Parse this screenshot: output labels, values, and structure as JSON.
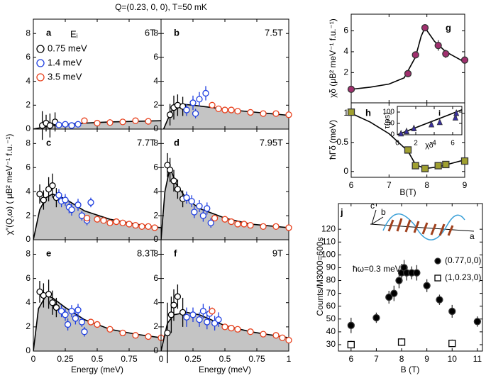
{
  "title": "Q=(0.23, 0, 0), T=50 mK",
  "y_label": "χ″(Q,ω) ( μB² meV⁻¹ f.u.⁻¹)",
  "spiral_diagram": {
    "a": "a",
    "b": "b",
    "c": "c"
  },
  "chart_data": [
    {
      "type": "scatter",
      "label": "a",
      "field": "6T",
      "legend_title": "Eᵢ",
      "fill": "#c4c4c4",
      "xlim": [
        0,
        1
      ],
      "xticks": [
        0,
        0.25,
        0.5,
        0.75
      ],
      "xtick_labels_shown": false,
      "ylim": [
        0,
        9.2
      ],
      "yticks": [
        0,
        2,
        4,
        6,
        8
      ],
      "series": [
        {
          "name": "0.75 meV",
          "color": "#000000",
          "marker": "circle-open",
          "x": [
            0.07,
            0.1,
            0.13,
            0.17
          ],
          "values": [
            0.3,
            0.5,
            0.3,
            0.6
          ],
          "errors": [
            1.2,
            0.7,
            1.0,
            0.8
          ]
        },
        {
          "name": "1.4 meV",
          "color": "#1f3fe0",
          "marker": "circle-open",
          "x": [
            0.2,
            0.25,
            0.3,
            0.35
          ],
          "values": [
            0.35,
            0.4,
            0.3,
            0.4
          ],
          "errors": [
            0.2,
            0.25,
            0.2,
            0.2
          ]
        },
        {
          "name": "3.5 meV",
          "color": "#e8401c",
          "marker": "circle-open",
          "x": [
            0.4,
            0.5,
            0.6,
            0.7,
            0.8,
            0.9
          ],
          "values": [
            0.7,
            0.5,
            0.55,
            0.6,
            0.7,
            0.65
          ],
          "errors": [
            0.1,
            0.1,
            0.1,
            0.1,
            0.1,
            0.1
          ]
        }
      ],
      "fit": {
        "x": [
          0,
          0.1,
          0.2,
          0.4,
          0.6,
          0.8,
          1
        ],
        "values": [
          0,
          0.2,
          0.35,
          0.5,
          0.6,
          0.65,
          0.7
        ]
      }
    },
    {
      "type": "scatter",
      "label": "b",
      "field": "7.5T",
      "fill": "#c4c4c4",
      "xlim": [
        0,
        1
      ],
      "xticks": [
        0,
        0.25,
        0.5,
        0.75,
        1
      ],
      "xtick_labels_shown": false,
      "ylim": [
        0,
        9.2
      ],
      "yticks": [
        0,
        2,
        4,
        6,
        8
      ],
      "series": [
        {
          "color": "#000000",
          "marker": "circle-open",
          "x": [
            0.07,
            0.1,
            0.13,
            0.17
          ],
          "values": [
            1.2,
            1.8,
            2.0,
            1.9
          ],
          "errors": [
            0.9,
            1.0,
            0.9,
            0.8
          ]
        },
        {
          "color": "#1f3fe0",
          "marker": "circle-open",
          "x": [
            0.2,
            0.25,
            0.27,
            0.3,
            0.35
          ],
          "values": [
            1.6,
            2.2,
            1.3,
            2.5,
            3.0
          ],
          "errors": [
            0.5,
            0.6,
            0.4,
            0.6,
            0.6
          ]
        },
        {
          "color": "#e8401c",
          "marker": "circle-open",
          "x": [
            0.4,
            0.45,
            0.5,
            0.55,
            0.6,
            0.7,
            0.8,
            0.9,
            1.0
          ],
          "values": [
            2.0,
            1.7,
            1.6,
            1.6,
            1.5,
            1.4,
            1.3,
            1.3,
            1.2
          ],
          "errors": [
            0.15,
            0.1,
            0.1,
            0.1,
            0.1,
            0.1,
            0.1,
            0.1,
            0.1
          ]
        }
      ],
      "fit": {
        "x": [
          0.02,
          0.08,
          0.15,
          0.25,
          0.4,
          0.6,
          0.8,
          1
        ],
        "values": [
          0,
          1.5,
          2.1,
          2.0,
          1.8,
          1.55,
          1.35,
          1.15
        ]
      }
    },
    {
      "type": "scatter",
      "label": "c",
      "field": "7.7T",
      "fill": "#c4c4c4",
      "xlim": [
        0,
        1
      ],
      "xticks": [
        0,
        0.25,
        0.5,
        0.75
      ],
      "xtick_labels_shown": false,
      "ylim": [
        0,
        9.2
      ],
      "yticks": [
        0,
        2,
        4,
        6,
        8
      ],
      "series": [
        {
          "color": "#000000",
          "marker": "circle-open",
          "x": [
            0.05,
            0.08,
            0.12,
            0.15,
            0.18
          ],
          "values": [
            3.8,
            3.3,
            4.2,
            4.5,
            3.5
          ],
          "errors": [
            0.8,
            0.8,
            1.0,
            1.0,
            0.8
          ]
        },
        {
          "color": "#1f3fe0",
          "marker": "circle-open",
          "x": [
            0.2,
            0.22,
            0.25,
            0.28,
            0.3,
            0.35,
            0.38,
            0.42,
            0.45
          ],
          "values": [
            3.7,
            3.2,
            3.3,
            2.7,
            2.5,
            2.9,
            2.0,
            1.6,
            3.1
          ],
          "errors": [
            0.5,
            0.5,
            0.5,
            0.5,
            0.5,
            0.5,
            0.4,
            0.4,
            0.4
          ]
        },
        {
          "color": "#e8401c",
          "marker": "circle-open",
          "x": [
            0.42,
            0.5,
            0.55,
            0.6,
            0.65,
            0.7,
            0.75,
            0.8,
            0.85,
            0.9,
            0.95
          ],
          "values": [
            1.8,
            1.7,
            1.6,
            1.4,
            1.5,
            1.4,
            1.3,
            1.2,
            1.1,
            1.1,
            1.0
          ],
          "errors": [
            0.1,
            0.1,
            0.1,
            0.1,
            0.1,
            0.1,
            0.1,
            0.1,
            0.1,
            0.1,
            0.1
          ]
        }
      ],
      "fit": {
        "x": [
          0,
          0.05,
          0.1,
          0.15,
          0.25,
          0.4,
          0.6,
          0.8,
          1
        ],
        "values": [
          0,
          2.5,
          3.5,
          3.8,
          3.4,
          2.4,
          1.7,
          1.3,
          1.0
        ]
      }
    },
    {
      "type": "scatter",
      "label": "d",
      "field": "7.95T",
      "fill": "#c4c4c4",
      "xlim": [
        0,
        1
      ],
      "xticks": [
        0,
        0.25,
        0.5,
        0.75,
        1
      ],
      "xtick_labels_shown": false,
      "ylim": [
        0,
        9.2
      ],
      "yticks": [
        0,
        2,
        4,
        6,
        8
      ],
      "series": [
        {
          "color": "#000000",
          "marker": "circle-open",
          "x": [
            0.05,
            0.07,
            0.1,
            0.13,
            0.17
          ],
          "values": [
            6.2,
            5.8,
            4.9,
            4.2,
            3.4
          ],
          "errors": [
            1.0,
            1.0,
            0.9,
            0.8,
            0.7
          ]
        },
        {
          "color": "#1f3fe0",
          "marker": "circle-open",
          "x": [
            0.2,
            0.24,
            0.26,
            0.3,
            0.33,
            0.36,
            0.39
          ],
          "values": [
            3.5,
            3.2,
            2.3,
            2.8,
            2.0,
            2.6,
            1.4
          ],
          "errors": [
            0.5,
            0.5,
            0.5,
            0.5,
            0.5,
            0.5,
            0.4
          ]
        },
        {
          "color": "#e8401c",
          "marker": "circle-open",
          "x": [
            0.42,
            0.5,
            0.55,
            0.6,
            0.65,
            0.7,
            0.8,
            0.9,
            1.0
          ],
          "values": [
            1.8,
            1.7,
            1.5,
            1.3,
            1.3,
            1.2,
            1.1,
            1.1,
            1.0
          ],
          "errors": [
            0.1,
            0.1,
            0.1,
            0.1,
            0.1,
            0.1,
            0.1,
            0.1,
            0.1
          ]
        }
      ],
      "fit": {
        "x": [
          0,
          0.03,
          0.07,
          0.12,
          0.2,
          0.3,
          0.5,
          0.7,
          1
        ],
        "values": [
          0,
          4,
          6.0,
          4.6,
          3.4,
          2.6,
          1.8,
          1.3,
          1.0
        ]
      }
    },
    {
      "type": "scatter",
      "label": "e",
      "field": "8.3T",
      "fill": "#c4c4c4",
      "x_label": "Energy (meV)",
      "xlim": [
        0,
        1
      ],
      "xticks": [
        0,
        0.25,
        0.5,
        0.75
      ],
      "ylim": [
        0,
        9.2
      ],
      "yticks": [
        0,
        2,
        4,
        6,
        8
      ],
      "series": [
        {
          "color": "#000000",
          "marker": "circle-open",
          "x": [
            0.05,
            0.08,
            0.12,
            0.15,
            0.18
          ],
          "values": [
            4.9,
            4.6,
            4.7,
            4.0,
            3.6
          ],
          "errors": [
            0.9,
            1.0,
            1.2,
            1.0,
            0.8
          ]
        },
        {
          "color": "#1f3fe0",
          "marker": "circle-open",
          "x": [
            0.22,
            0.25,
            0.27,
            0.3,
            0.33,
            0.35,
            0.38,
            0.4
          ],
          "values": [
            3.3,
            3.0,
            2.2,
            3.3,
            2.7,
            3.4,
            2.4,
            1.6
          ],
          "errors": [
            0.5,
            0.5,
            0.5,
            0.5,
            0.5,
            0.5,
            0.4,
            0.4
          ]
        },
        {
          "color": "#e8401c",
          "marker": "circle-open",
          "x": [
            0.45,
            0.5,
            0.6,
            0.7,
            0.8,
            0.9,
            1.0
          ],
          "values": [
            2.4,
            2.2,
            1.8,
            1.5,
            1.3,
            1.2,
            1.1
          ],
          "errors": [
            0.1,
            0.1,
            0.1,
            0.1,
            0.1,
            0.1,
            0.1
          ]
        }
      ],
      "fit": {
        "x": [
          0,
          0.04,
          0.1,
          0.15,
          0.25,
          0.4,
          0.6,
          0.8,
          1
        ],
        "values": [
          0,
          3.5,
          4.6,
          4.4,
          3.6,
          2.6,
          1.8,
          1.4,
          1.1
        ]
      }
    },
    {
      "type": "scatter",
      "label": "f",
      "field": "9T",
      "fill": "#c4c4c4",
      "x_label": "Energy (meV)",
      "xlim": [
        0,
        1
      ],
      "xticks": [
        0,
        0.25,
        0.5,
        0.75,
        1
      ],
      "ylim": [
        0,
        9.2
      ],
      "yticks": [
        0,
        2,
        4,
        6,
        8
      ],
      "series": [
        {
          "color": "#000000",
          "marker": "circle-open",
          "x": [
            0.05,
            0.08,
            0.1,
            0.13,
            0.17
          ],
          "values": [
            1.5,
            3.0,
            3.8,
            4.5,
            3.2
          ],
          "errors": [
            2.5,
            1.5,
            1.3,
            1.0,
            1.2
          ]
        },
        {
          "color": "#1f3fe0",
          "marker": "circle-open",
          "x": [
            0.2,
            0.25,
            0.3,
            0.33,
            0.36,
            0.38,
            0.42,
            0.45
          ],
          "values": [
            2.8,
            3.0,
            2.6,
            3.3,
            2.4,
            3.1,
            2.3,
            2.6
          ],
          "errors": [
            0.8,
            0.6,
            0.6,
            0.6,
            0.6,
            0.6,
            0.6,
            0.6
          ]
        },
        {
          "color": "#e8401c",
          "marker": "circle-open",
          "x": [
            0.4,
            0.5,
            0.55,
            0.6,
            0.7,
            0.8,
            0.9,
            0.95,
            1.0
          ],
          "values": [
            3.3,
            2.0,
            1.9,
            1.8,
            1.6,
            1.4,
            1.3,
            1.1,
            0.9
          ],
          "errors": [
            0.3,
            0.15,
            0.1,
            0.1,
            0.1,
            0.1,
            0.1,
            0.1,
            0.1
          ]
        }
      ],
      "fit": {
        "x": [
          0,
          0.05,
          0.1,
          0.2,
          0.3,
          0.5,
          0.7,
          1
        ],
        "values": [
          0,
          2.3,
          3.0,
          3.2,
          3.0,
          2.1,
          1.6,
          1.1
        ]
      }
    },
    {
      "type": "scatter",
      "label": "g",
      "y_label": "χδ (μB² meV⁻¹ f.u.⁻¹)",
      "xlim": [
        6,
        9
      ],
      "xticks": [
        6,
        7,
        8,
        9
      ],
      "xtick_labels_shown": false,
      "ylim": [
        -0.9,
        7.6
      ],
      "yticks": [
        2,
        4,
        6
      ],
      "series": [
        {
          "color": "#a0306e",
          "marker": "circle-filled",
          "x": [
            6,
            7.5,
            7.7,
            7.95,
            8.3,
            8.5,
            9
          ],
          "values": [
            0.4,
            1.9,
            3.7,
            6.3,
            4.6,
            3.8,
            3.2
          ],
          "errors": [
            0.1,
            0.2,
            0.3,
            0.2,
            0.5,
            0.4,
            0.4
          ]
        }
      ],
      "fit": {
        "x": [
          6,
          6.5,
          7,
          7.4,
          7.7,
          7.85,
          7.95,
          8.2,
          8.5,
          9
        ],
        "values": [
          0.4,
          0.6,
          0.9,
          1.5,
          3.5,
          5.5,
          6.3,
          5.0,
          4.0,
          3.0
        ]
      }
    },
    {
      "type": "scatter",
      "label": "h",
      "y_label": "ħΓδ (meV)",
      "x_label": "B(T)",
      "xlim": [
        6,
        9
      ],
      "xticks": [
        6,
        7,
        8,
        9
      ],
      "ylim": [
        -0.1,
        1.18
      ],
      "yticks": [
        0,
        0.5,
        1
      ],
      "series": [
        {
          "color": "#a0a030",
          "marker": "square-filled",
          "x": [
            6,
            7.5,
            7.7,
            7.95,
            8.3,
            8.5,
            9
          ],
          "values": [
            1.02,
            0.37,
            0.1,
            0.05,
            0.1,
            0.12,
            0.18
          ],
          "errors": [
            0.08,
            0.05,
            0.04,
            0.03,
            0.04,
            0.04,
            0.04
          ]
        }
      ],
      "fit": {
        "x": [
          6,
          6.5,
          7,
          7.5,
          7.7,
          7.95,
          8.3,
          9
        ],
        "values": [
          1.0,
          0.85,
          0.65,
          0.35,
          0.12,
          0.05,
          0.08,
          0.2
        ]
      }
    },
    {
      "type": "scatter",
      "label": "i",
      "y_label": "τ(ps)",
      "x_label": "χδ",
      "xlim": [
        0,
        7
      ],
      "xticks": [
        0,
        2,
        4,
        6
      ],
      "ylim": [
        0,
        125
      ],
      "yticks": [
        0,
        50,
        100
      ],
      "series": [
        {
          "color": "#3a30a0",
          "marker": "triangle-filled",
          "x": [
            0.4,
            1,
            1.8,
            3.7,
            4.6,
            6.3,
            6.4
          ],
          "values": [
            5,
            15,
            28,
            45,
            55,
            75,
            95
          ],
          "errors": [
            2,
            3,
            3,
            4,
            5,
            10,
            15
          ]
        }
      ],
      "fit": {
        "x": [
          0,
          7
        ],
        "values": [
          0,
          110
        ]
      }
    },
    {
      "type": "scatter",
      "label": "j",
      "y_label": "Counts/M3000=600s",
      "x_label": "B (T)",
      "annotation": "ħω=0.3 meV",
      "xlim": [
        5.5,
        11.2
      ],
      "xticks": [
        6,
        7,
        8,
        9,
        10,
        11
      ],
      "ylim": [
        25,
        140
      ],
      "yticks": [
        30,
        40,
        50,
        60,
        70,
        80,
        90,
        100,
        110,
        120
      ],
      "series": [
        {
          "name": "(0.77,0,0)",
          "color": "#000000",
          "marker": "circle-filled",
          "x": [
            6,
            7,
            7.5,
            7.7,
            7.9,
            8,
            8.1,
            8.2,
            8.4,
            8.6,
            9,
            9.5,
            10,
            11
          ],
          "values": [
            45,
            51,
            67,
            70,
            80,
            86,
            90,
            86,
            86,
            86,
            76,
            65,
            56,
            48
          ],
          "errors": [
            6,
            4,
            5,
            6,
            6,
            7,
            6,
            6,
            5,
            6,
            5,
            4,
            5,
            4
          ]
        },
        {
          "name": "(1,0.23,0)",
          "color": "#000000",
          "marker": "square-open",
          "x": [
            6,
            8,
            10
          ],
          "values": [
            30,
            32,
            31
          ],
          "errors": [
            3,
            3,
            3
          ]
        }
      ]
    }
  ]
}
